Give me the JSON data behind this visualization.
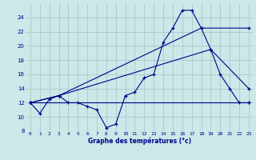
{
  "xlabel": "Graphe des températures (°c)",
  "bg_color": "#cce8e8",
  "line_color": "#00008b",
  "grid_color": "#a0c4c4",
  "xlim": [
    -0.5,
    23.5
  ],
  "ylim": [
    8,
    26
  ],
  "yticks": [
    8,
    10,
    12,
    14,
    16,
    18,
    20,
    22,
    24
  ],
  "xticks": [
    0,
    1,
    2,
    3,
    4,
    5,
    6,
    7,
    8,
    9,
    10,
    11,
    12,
    13,
    14,
    15,
    16,
    17,
    18,
    19,
    20,
    21,
    22,
    23
  ],
  "series": [
    {
      "x": [
        0,
        1,
        2,
        3,
        4,
        5,
        6,
        7,
        8,
        9,
        10,
        11,
        12,
        13,
        14,
        15,
        16,
        17,
        18,
        19,
        20,
        21,
        22,
        23
      ],
      "y": [
        12,
        10.5,
        12.5,
        13,
        12,
        12,
        11.5,
        11,
        8.5,
        9,
        13,
        13.5,
        15.5,
        16,
        20.5,
        22.5,
        25,
        25,
        22.5,
        19.5,
        16,
        14,
        12,
        12
      ]
    },
    {
      "x": [
        0,
        23
      ],
      "y": [
        12,
        12
      ]
    },
    {
      "x": [
        0,
        3,
        19,
        23
      ],
      "y": [
        12,
        13,
        19.5,
        14
      ]
    },
    {
      "x": [
        0,
        3,
        18,
        23
      ],
      "y": [
        12,
        13,
        22.5,
        22.5
      ]
    }
  ]
}
